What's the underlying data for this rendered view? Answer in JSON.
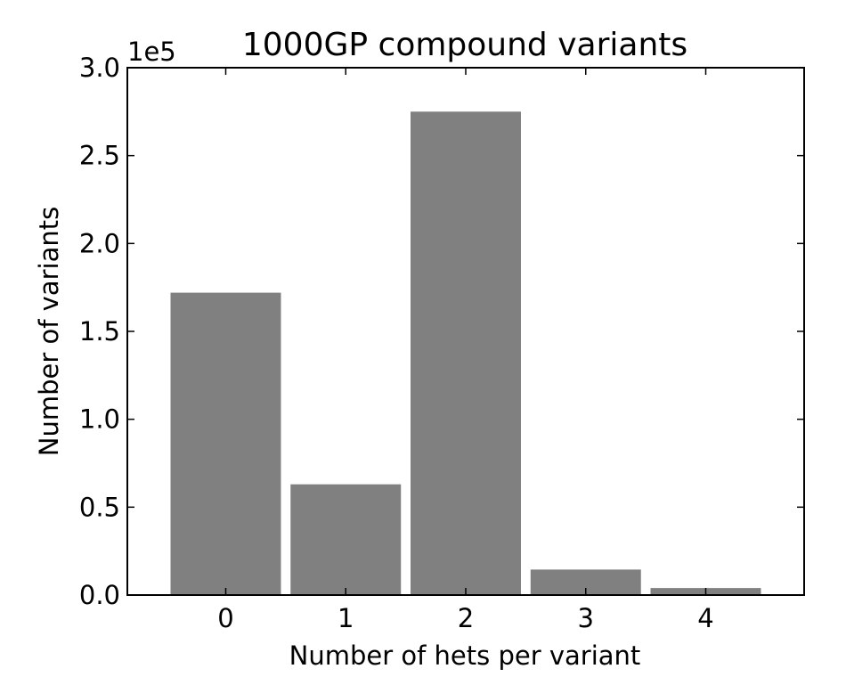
{
  "chart_data": {
    "type": "bar",
    "title": "1000GP compound variants",
    "xlabel": "Number of hets per variant",
    "ylabel": "Number of variants",
    "offset_label": "1e5",
    "categories": [
      "0",
      "1",
      "2",
      "3",
      "4"
    ],
    "values": [
      172000,
      63000,
      275000,
      14500,
      4000
    ],
    "ylim": [
      0,
      300000
    ],
    "xlim": [
      -0.82,
      4.82
    ],
    "yticks": [
      0,
      50000,
      100000,
      150000,
      200000,
      250000,
      300000
    ],
    "ytick_labels": [
      "0.0",
      "0.5",
      "1.0",
      "1.5",
      "2.0",
      "2.5",
      "3.0"
    ],
    "bar_color": "#808080",
    "grid": false,
    "legend": "none"
  }
}
